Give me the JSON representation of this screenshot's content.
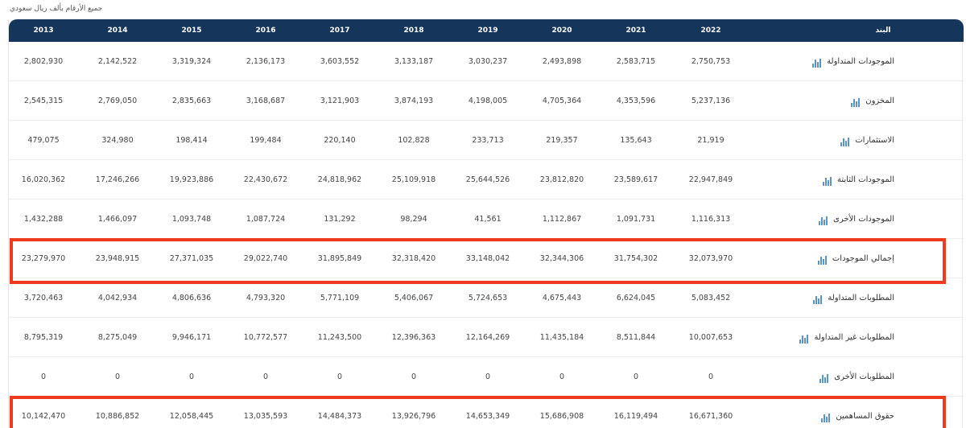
{
  "note": "جميع الأرقام بألف ريال سعودي",
  "colors": {
    "header_bg": "#16355b",
    "highlight": "#ee3a1e",
    "icon": "#5b93c7"
  },
  "table": {
    "headers": [
      "البند",
      "2022",
      "2021",
      "2020",
      "2019",
      "2018",
      "2017",
      "2016",
      "2015",
      "2014",
      "2013"
    ],
    "rows": [
      {
        "label": "الموجودات المتداولة",
        "icon": "bar-chart-icon",
        "values": [
          "2,750,753",
          "2,583,715",
          "2,493,898",
          "3,030,237",
          "3,133,187",
          "3,603,552",
          "2,136,173",
          "3,319,324",
          "2,142,522",
          "2,802,930"
        ]
      },
      {
        "label": "المخزون",
        "icon": "bar-chart-icon",
        "values": [
          "5,237,136",
          "4,353,596",
          "4,705,364",
          "4,198,005",
          "3,874,193",
          "3,121,903",
          "3,168,687",
          "2,835,663",
          "2,769,050",
          "2,545,315"
        ]
      },
      {
        "label": "الاستثمارات",
        "icon": "bar-chart-icon",
        "values": [
          "21,919",
          "135,643",
          "219,357",
          "233,713",
          "102,828",
          "220,140",
          "199,484",
          "198,414",
          "324,980",
          "479,075"
        ]
      },
      {
        "label": "الموجودات الثابتة",
        "icon": "bar-chart-icon",
        "values": [
          "22,947,849",
          "23,589,617",
          "23,812,820",
          "25,644,526",
          "25,109,918",
          "24,818,962",
          "22,430,672",
          "19,923,886",
          "17,246,266",
          "16,020,362"
        ]
      },
      {
        "label": "الموجودات الأخرى",
        "icon": "bar-chart-icon",
        "values": [
          "1,116,313",
          "1,091,731",
          "1,112,867",
          "41,561",
          "98,294",
          "131,292",
          "1,087,724",
          "1,093,748",
          "1,466,097",
          "1,432,288"
        ]
      },
      {
        "label": "إجمالي الموجودات",
        "icon": "bar-chart-icon",
        "highlighted": true,
        "values": [
          "32,073,970",
          "31,754,302",
          "32,344,306",
          "33,148,042",
          "32,318,420",
          "31,895,849",
          "29,022,740",
          "27,371,035",
          "23,948,915",
          "23,279,970"
        ]
      },
      {
        "label": "المطلوبات المتداولة",
        "icon": "bar-chart-icon",
        "values": [
          "5,083,452",
          "6,624,045",
          "4,675,443",
          "5,724,653",
          "5,406,067",
          "5,771,109",
          "4,793,320",
          "4,806,636",
          "4,042,934",
          "3,720,463"
        ]
      },
      {
        "label": "المطلوبات غير المتداولة",
        "icon": "bar-chart-icon",
        "values": [
          "10,007,653",
          "8,511,844",
          "11,435,184",
          "12,164,269",
          "12,396,363",
          "11,243,500",
          "10,772,577",
          "9,946,171",
          "8,275,049",
          "8,795,319"
        ]
      },
      {
        "label": "المطلوبات الأخرى",
        "icon": "bar-chart-icon",
        "values": [
          "0",
          "0",
          "0",
          "0",
          "0",
          "0",
          "0",
          "0",
          "0",
          "0"
        ]
      },
      {
        "label": "حقوق المساهمين",
        "icon": "bar-chart-icon",
        "highlighted": true,
        "values": [
          "16,671,360",
          "16,119,494",
          "15,686,908",
          "14,653,349",
          "13,926,796",
          "14,484,373",
          "13,035,593",
          "12,058,445",
          "10,886,852",
          "10,142,470"
        ]
      }
    ]
  }
}
